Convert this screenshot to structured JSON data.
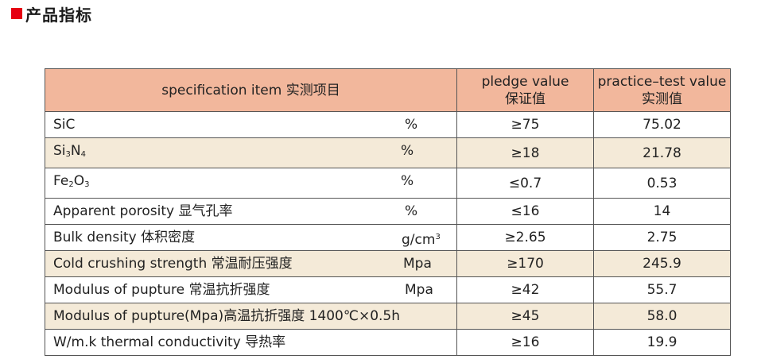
{
  "heading": {
    "title": "产品指标",
    "accent_color": "#e60012"
  },
  "table": {
    "header_bg": "#f2b79c",
    "shade_bg": "#f4ead8",
    "headers": {
      "item": "specification item 实测项目",
      "pledge_line1": "pledge value",
      "pledge_line2": "保证值",
      "test_line1": "practice–test value",
      "test_line2": "实测值"
    },
    "rows": [
      {
        "item": "SiC",
        "unit": "%",
        "pledge": "≥75",
        "test": "75.02"
      },
      {
        "item_main": "Si",
        "item_sub1": "3",
        "item_mid": "N",
        "item_sub2": "4",
        "unit": "%",
        "pledge": "≥18",
        "test": "21.78"
      },
      {
        "item_main": "Fe",
        "item_sub1": "2",
        "item_mid": "O",
        "item_sub2": "3",
        "unit": "%",
        "pledge": "≤0.7",
        "test": "0.53"
      },
      {
        "item": "Apparent porosity 显气孔率",
        "unit": "%",
        "pledge": "≤16",
        "test": "14"
      },
      {
        "item": "Bulk density 体积密度",
        "unit_main": "g/cm",
        "unit_sup": "3",
        "pledge": "≥2.65",
        "test": "2.75"
      },
      {
        "item": "Cold crushing strength 常温耐压强度",
        "unit": "Mpa",
        "pledge": "≥170",
        "test": "245.9"
      },
      {
        "item": "Modulus of pupture 常温抗折强度",
        "unit": "Mpa",
        "pledge": "≥42",
        "test": "55.7"
      },
      {
        "item": "Modulus of pupture(Mpa)高温抗折强度  1400℃×0.5h",
        "unit": "",
        "pledge": "≥45",
        "test": "58.0"
      },
      {
        "item": "W/m.k thermal conductivity 导热率",
        "unit": "",
        "pledge": "≥16",
        "test": "19.9"
      }
    ]
  }
}
